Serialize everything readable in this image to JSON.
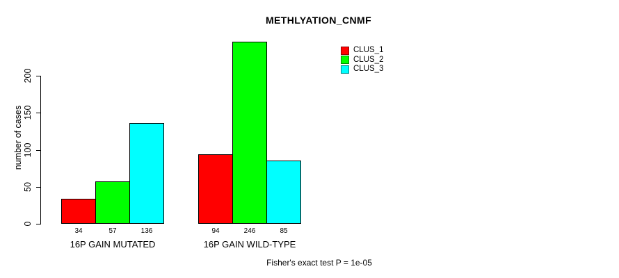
{
  "title": "METHLYATION_CNMF",
  "y_axis": {
    "label": "number of cases",
    "ticks": [
      0,
      50,
      100,
      150,
      200
    ]
  },
  "legend": {
    "items": [
      {
        "label": "CLUS_1",
        "color": "#ff0000"
      },
      {
        "label": "CLUS_2",
        "color": "#00ff00"
      },
      {
        "label": "CLUS_3",
        "color": "#00ffff"
      }
    ]
  },
  "footer": "Fisher's exact test P = 1e-05",
  "chart_data": {
    "type": "bar",
    "title": "METHLYATION_CNMF",
    "categories": [
      "16P GAIN MUTATED",
      "16P GAIN WILD-TYPE"
    ],
    "series": [
      {
        "name": "CLUS_1",
        "color": "#ff0000",
        "values": [
          34,
          94
        ]
      },
      {
        "name": "CLUS_2",
        "color": "#00ff00",
        "values": [
          57,
          246
        ]
      },
      {
        "name": "CLUS_3",
        "color": "#00ffff",
        "values": [
          136,
          85
        ]
      }
    ],
    "bar_value_labels": [
      [
        34,
        57,
        136
      ],
      [
        94,
        246,
        85
      ]
    ],
    "xlabel": "",
    "ylabel": "number of cases",
    "ylim": [
      0,
      250
    ],
    "yticks": [
      0,
      50,
      100,
      150,
      200
    ],
    "grid": false,
    "bar_border_color": "#000000",
    "legend_position": "top-right",
    "annotation": "Fisher's exact test P = 1e-05"
  }
}
